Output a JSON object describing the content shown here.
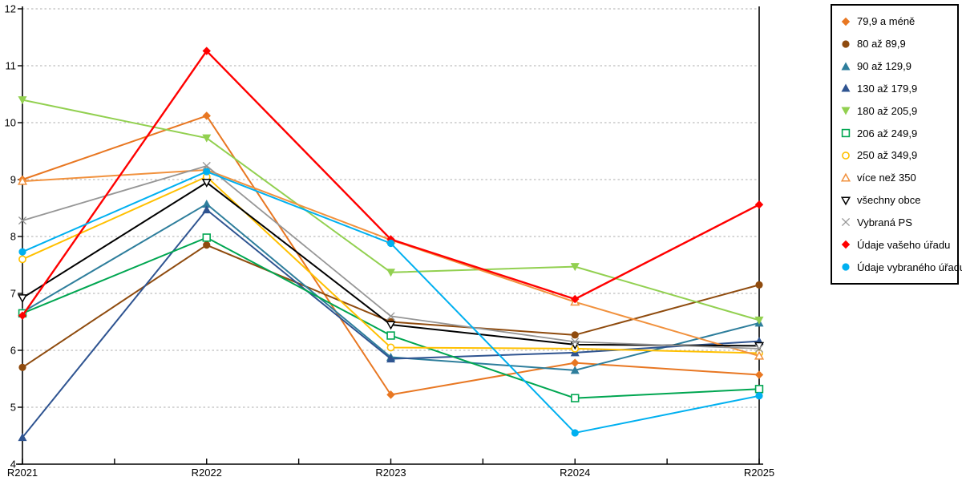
{
  "chart_data": {
    "type": "line",
    "title": "",
    "xlabel": "",
    "ylabel": "",
    "categories": [
      "R2021",
      "R2022",
      "R2023",
      "R2024",
      "R2025"
    ],
    "ylim": [
      4,
      12
    ],
    "ytick_step": 1,
    "yticks": [
      4,
      5,
      6,
      7,
      8,
      9,
      10,
      11,
      12
    ],
    "grid": "horizontal-dashed",
    "legend_position": "right",
    "axis_color": "#000000",
    "gridline_color": "#ADADAD",
    "series": [
      {
        "name": "79,9 a méně",
        "color": "#E87722",
        "marker": "diamond",
        "values": [
          9.0,
          10.12,
          5.22,
          5.78,
          5.57
        ]
      },
      {
        "name": "80 až 89,9",
        "color": "#8F4B0E",
        "marker": "circle",
        "values": [
          5.7,
          7.85,
          6.5,
          6.27,
          7.15
        ]
      },
      {
        "name": "90 až 129,9",
        "color": "#2E7E9C",
        "marker": "triangle",
        "values": [
          6.67,
          8.57,
          5.88,
          5.65,
          6.48
        ]
      },
      {
        "name": "130 až 179,9",
        "color": "#2F5491",
        "marker": "triangle",
        "values": [
          4.47,
          8.47,
          5.85,
          5.96,
          6.16
        ]
      },
      {
        "name": "180 až 205,9",
        "color": "#92D050",
        "marker": "triangle-down",
        "values": [
          10.4,
          9.73,
          7.37,
          7.47,
          6.53
        ]
      },
      {
        "name": "206 až 249,9",
        "color": "#00A651",
        "marker": "square-open",
        "values": [
          6.65,
          7.98,
          6.26,
          5.16,
          5.32
        ]
      },
      {
        "name": "250 až 349,9",
        "color": "#FFC000",
        "marker": "circle-open",
        "values": [
          7.6,
          9.05,
          6.05,
          6.03,
          5.95
        ]
      },
      {
        "name": "více než 350",
        "color": "#F1913D",
        "marker": "triangle-open",
        "values": [
          8.97,
          9.17,
          7.94,
          6.85,
          5.9
        ]
      },
      {
        "name": "všechny obce",
        "color": "#000000",
        "marker": "triangle-down-open",
        "values": [
          6.92,
          8.95,
          6.45,
          6.1,
          6.08
        ]
      },
      {
        "name": "Vybraná PS",
        "color": "#969696",
        "marker": "x",
        "values": [
          8.28,
          9.24,
          6.6,
          6.15,
          6.03
        ]
      },
      {
        "name": "Údaje vašeho úřadu",
        "color": "#FF0000",
        "marker": "diamond",
        "values": [
          6.61,
          11.26,
          7.95,
          6.9,
          8.56
        ]
      },
      {
        "name": "Údaje vybraného úřadu",
        "color": "#00B0F0",
        "marker": "circle",
        "values": [
          7.73,
          9.14,
          7.88,
          4.55,
          5.2
        ]
      }
    ]
  }
}
